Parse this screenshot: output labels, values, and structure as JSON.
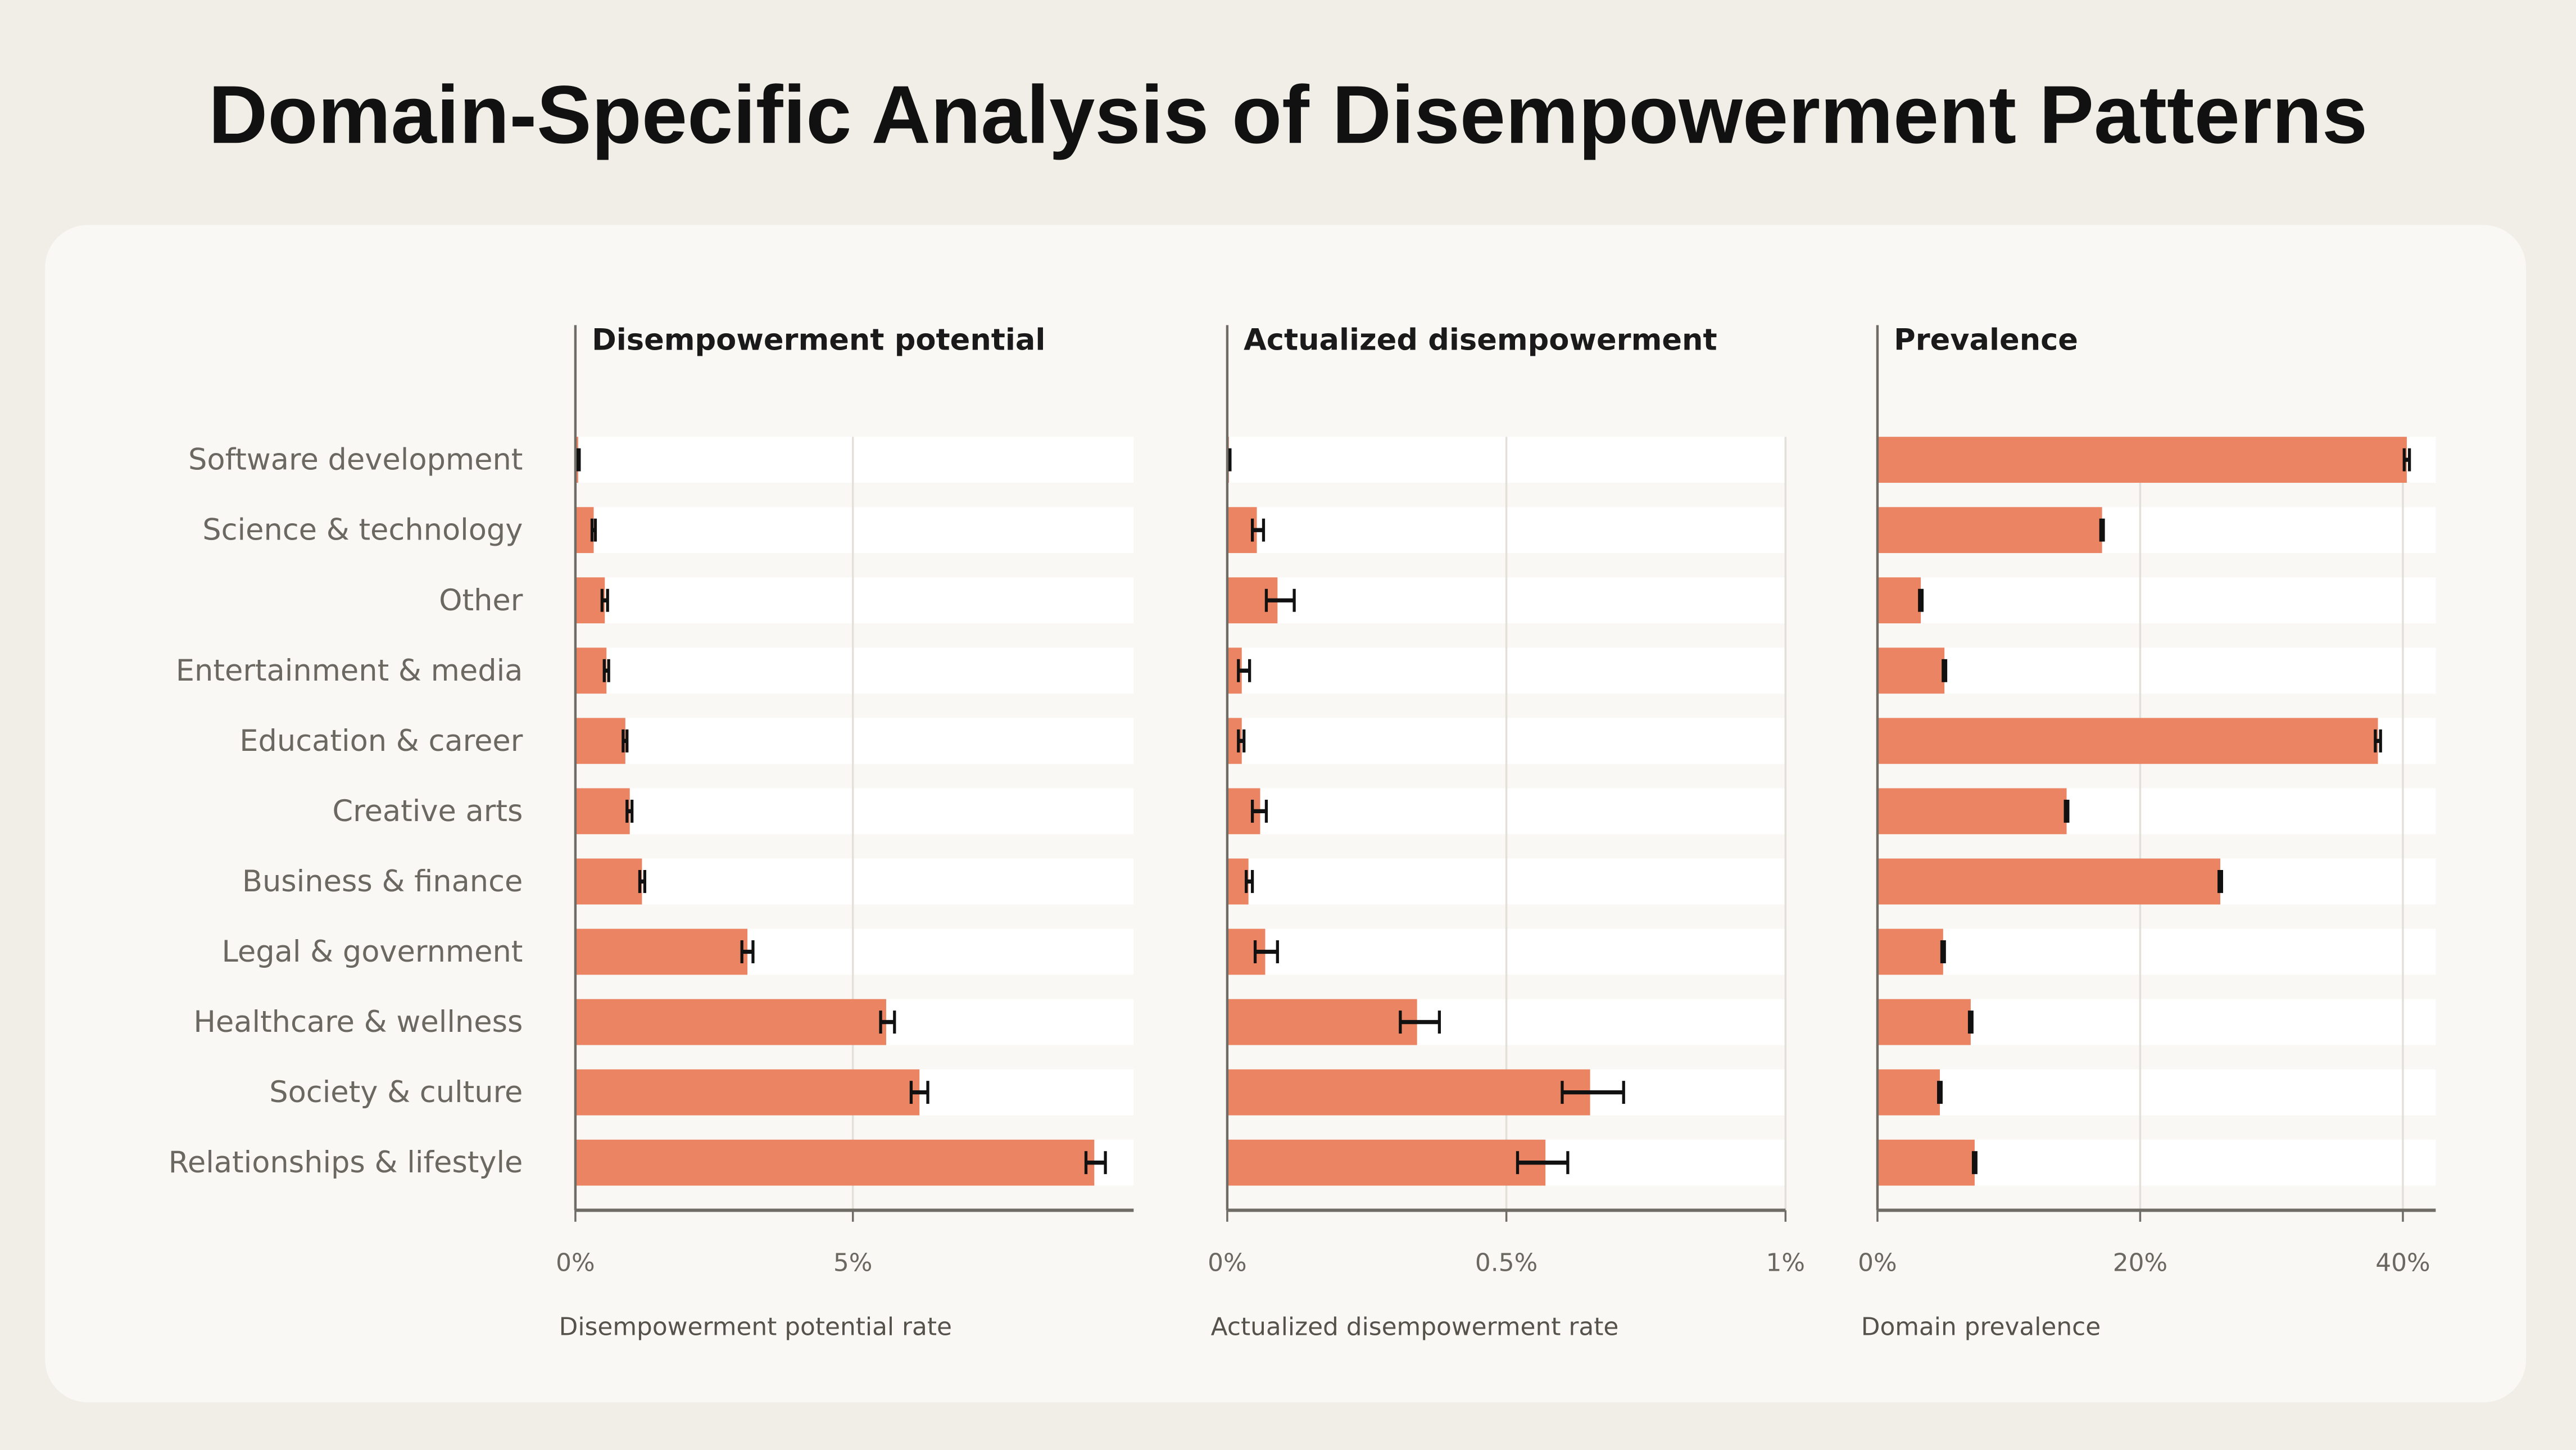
{
  "title": "Domain-Specific Analysis of Disempowerment Patterns",
  "colors": {
    "bar": "#eb8462",
    "background": "#f0eee7",
    "card": "#f9f8f4",
    "error_bar": "#111111"
  },
  "chart_data": [
    {
      "type": "bar",
      "orientation": "horizontal",
      "title": "Disempowerment potential",
      "xlabel": "Disempowerment potential rate",
      "xlim": [
        0,
        10
      ],
      "ticks": [
        0,
        5
      ],
      "tick_labels": [
        "0%",
        "5%"
      ],
      "grid": true,
      "categories": [
        "Software development",
        "Science & technology",
        "Other",
        "Entertainment & media",
        "Education & career",
        "Creative arts",
        "Business & finance",
        "Legal & government",
        "Healthcare & wellness",
        "Society & culture",
        "Relationships & lifestyle"
      ],
      "values": [
        0.05,
        0.33,
        0.53,
        0.56,
        0.9,
        0.98,
        1.2,
        3.1,
        5.6,
        6.2,
        9.35
      ],
      "error_low": [
        0.03,
        0.3,
        0.48,
        0.52,
        0.86,
        0.93,
        1.16,
        3.0,
        5.5,
        6.05,
        9.2
      ],
      "error_high": [
        0.07,
        0.36,
        0.58,
        0.6,
        0.93,
        1.02,
        1.25,
        3.2,
        5.75,
        6.35,
        9.55
      ]
    },
    {
      "type": "bar",
      "orientation": "horizontal",
      "title": "Actualized disempowerment",
      "xlabel": "Actualized disempowerment rate",
      "xlim": [
        0,
        1
      ],
      "ticks": [
        0,
        0.5,
        1
      ],
      "tick_labels": [
        "0%",
        "0.5%",
        "1%"
      ],
      "grid": true,
      "categories": [
        "Software development",
        "Science & technology",
        "Other",
        "Entertainment & media",
        "Education & career",
        "Creative arts",
        "Business & finance",
        "Legal & government",
        "Healthcare & wellness",
        "Society & culture",
        "Relationships & lifestyle"
      ],
      "values": [
        0.003,
        0.053,
        0.09,
        0.026,
        0.026,
        0.059,
        0.038,
        0.068,
        0.34,
        0.65,
        0.57
      ],
      "error_low": [
        0.001,
        0.045,
        0.07,
        0.02,
        0.02,
        0.045,
        0.034,
        0.05,
        0.31,
        0.6,
        0.52
      ],
      "error_high": [
        0.005,
        0.065,
        0.12,
        0.04,
        0.03,
        0.07,
        0.045,
        0.09,
        0.38,
        0.71,
        0.61
      ]
    },
    {
      "type": "bar",
      "orientation": "horizontal",
      "title": "Prevalence",
      "xlabel": "Domain prevalence",
      "xlim": [
        0,
        42.5
      ],
      "ticks": [
        0,
        20,
        40
      ],
      "tick_labels": [
        "0%",
        "20%",
        "40%"
      ],
      "grid": true,
      "categories": [
        "Software development",
        "Science & technology",
        "Other",
        "Entertainment & media",
        "Education & career",
        "Creative arts",
        "Business & finance",
        "Legal & government",
        "Healthcare & wellness",
        "Society & culture",
        "Relationships & lifestyle"
      ],
      "values": [
        40.3,
        17.1,
        3.3,
        5.1,
        38.1,
        14.4,
        26.1,
        5.0,
        7.1,
        4.75,
        7.4
      ],
      "error_low": [
        40.1,
        17.0,
        3.2,
        5.0,
        37.9,
        14.3,
        26.0,
        4.9,
        7.0,
        4.65,
        7.3
      ],
      "error_high": [
        40.5,
        17.2,
        3.4,
        5.2,
        38.3,
        14.5,
        26.2,
        5.1,
        7.2,
        4.85,
        7.5
      ]
    }
  ]
}
